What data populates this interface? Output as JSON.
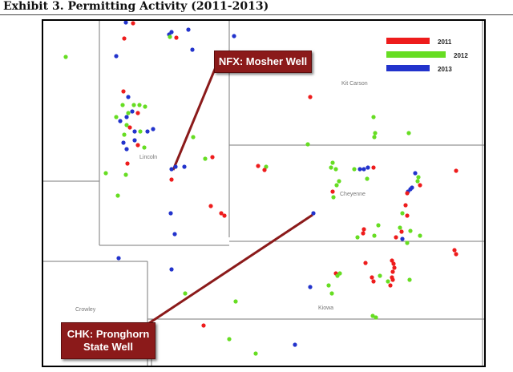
{
  "title": "Exhibit 3.  Permitting Activity (2011-2013)",
  "legend": [
    {
      "label": "2011",
      "color": "#ee1c1c"
    },
    {
      "label": "2012",
      "color": "#66dd22"
    },
    {
      "label": "2013",
      "color": "#2233cc"
    }
  ],
  "counties": {
    "kit_carson": "Kit Carson",
    "lincoln": "Lincoln",
    "cheyenne": "Cheyenne",
    "kiowa": "Kiowa",
    "crowley": "Crowley"
  },
  "callouts": {
    "nfx": "NFX: Mosher Well",
    "chk_line1": "CHK: Pronghorn",
    "chk_line2": "State Well"
  },
  "colors": {
    "callout_bg": "#8b1a1a",
    "leader_line": "#8b1a1a",
    "border_lines": "#777777"
  }
}
